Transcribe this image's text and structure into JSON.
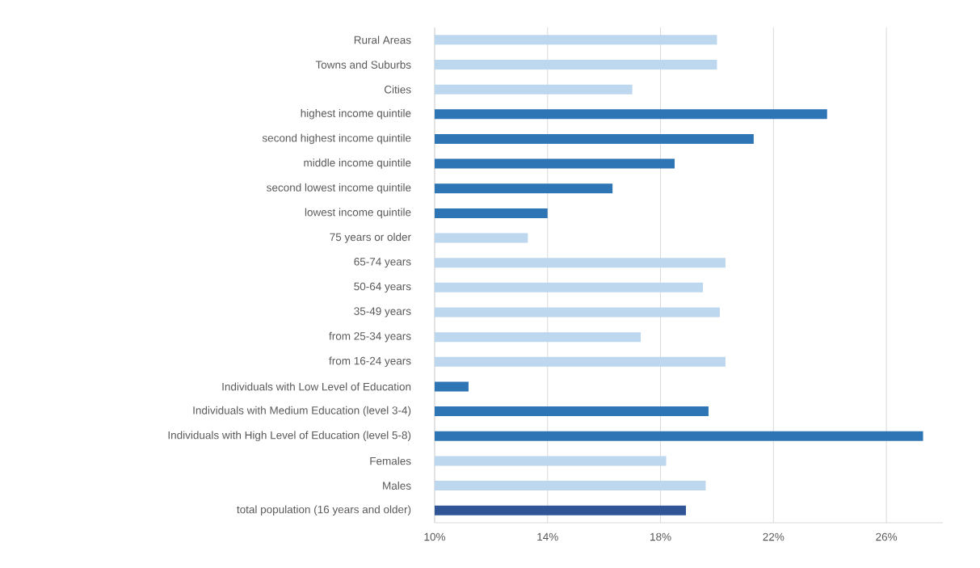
{
  "chart_data": {
    "type": "bar",
    "orientation": "horizontal",
    "categories": [
      "Rural Areas",
      "Towns and Suburbs",
      "Cities",
      "highest income quintile",
      "second highest income quintile",
      "middle income quintile",
      "second lowest income quintile",
      "lowest income quintile",
      "75 years or older",
      "65-74 years",
      "50-64 years",
      "35-49 years",
      "from 25-34 years",
      "from 16-24 years",
      "Individuals with Low Level of Education",
      "Individuals with Medium Education (level 3-4)",
      "Individuals with High Level of Education (level 5-8)",
      "Females",
      "Males",
      "total population (16 years and older)"
    ],
    "values": [
      20.0,
      20.0,
      17.0,
      23.9,
      21.3,
      18.5,
      16.3,
      14.0,
      13.3,
      20.3,
      19.5,
      20.1,
      17.3,
      20.3,
      11.2,
      19.7,
      27.3,
      18.2,
      19.6,
      18.9
    ],
    "colors": [
      "#bdd7ee",
      "#bdd7ee",
      "#bdd7ee",
      "#2e75b6",
      "#2e75b6",
      "#2e75b6",
      "#2e75b6",
      "#2e75b6",
      "#bdd7ee",
      "#bdd7ee",
      "#bdd7ee",
      "#bdd7ee",
      "#bdd7ee",
      "#bdd7ee",
      "#2e75b6",
      "#2e75b6",
      "#2e75b6",
      "#bdd7ee",
      "#bdd7ee",
      "#2f5597"
    ],
    "xlim": [
      10,
      28
    ],
    "xticks": [
      {
        "value": 10,
        "label": "10%"
      },
      {
        "value": 14,
        "label": "14%"
      },
      {
        "value": 18,
        "label": "18%"
      },
      {
        "value": 22,
        "label": "22%"
      },
      {
        "value": 26,
        "label": "26%"
      }
    ],
    "grid": "x"
  }
}
